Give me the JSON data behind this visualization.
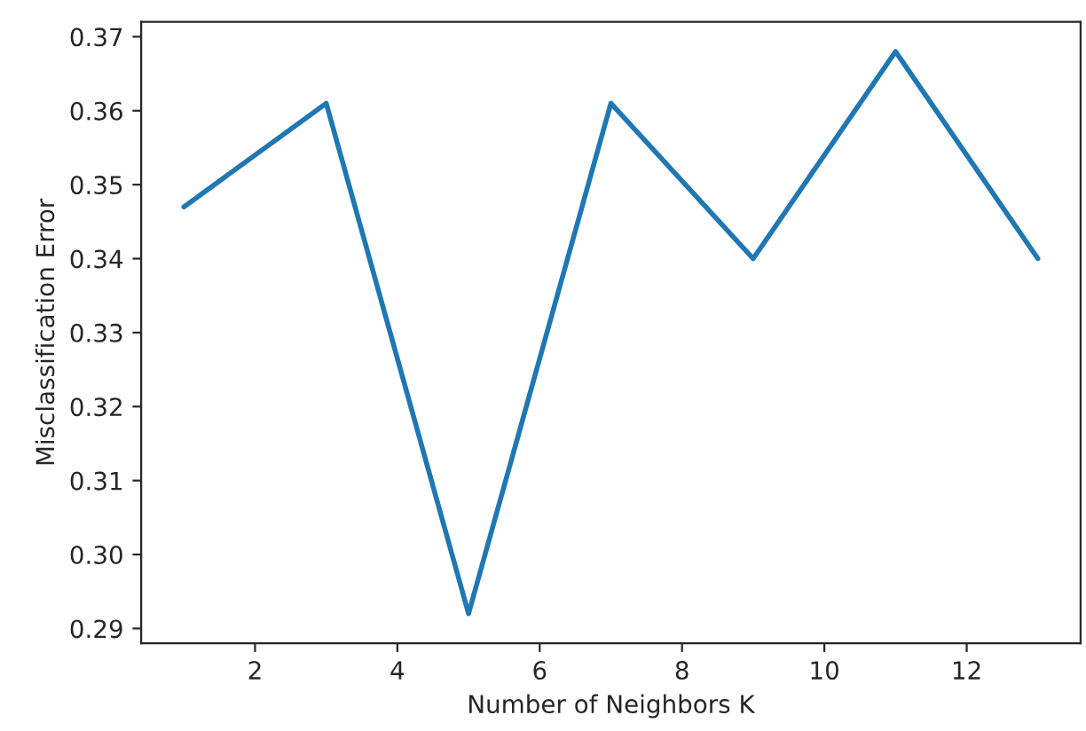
{
  "chart_data": {
    "type": "line",
    "xlabel": "Number of Neighbors K",
    "ylabel": "Misclassification Error",
    "x": [
      1,
      3,
      5,
      7,
      9,
      11,
      13
    ],
    "series": [
      {
        "color": "#1f77b4",
        "values": [
          0.347,
          0.361,
          0.292,
          0.361,
          0.34,
          0.368,
          0.34
        ]
      }
    ],
    "xlim": [
      0.4,
      13.6
    ],
    "xticks": [
      2,
      4,
      6,
      8,
      10,
      12
    ],
    "ylim": [
      0.288,
      0.372
    ],
    "yticks": [
      {
        "value": 0.29,
        "label": "0.29"
      },
      {
        "value": 0.3,
        "label": "0.30"
      },
      {
        "value": 0.31,
        "label": "0.31"
      },
      {
        "value": 0.32,
        "label": "0.32"
      },
      {
        "value": 0.33,
        "label": "0.33"
      },
      {
        "value": 0.34,
        "label": "0.34"
      },
      {
        "value": 0.35,
        "label": "0.35"
      },
      {
        "value": 0.36,
        "label": "0.36"
      },
      {
        "value": 0.37,
        "label": "0.37"
      }
    ],
    "grid": false,
    "legend": false
  }
}
